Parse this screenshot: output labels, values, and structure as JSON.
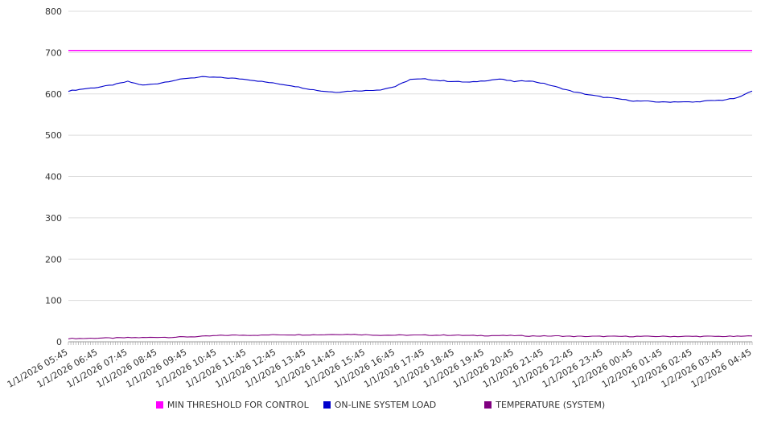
{
  "page": {
    "background": "#ffffff"
  },
  "chart_data": {
    "type": "line",
    "title": "",
    "xlabel": "",
    "ylabel": "",
    "grid": true,
    "legend_position": "bottom",
    "ylim": [
      0,
      800
    ],
    "y_ticks": [
      0,
      100,
      200,
      300,
      400,
      500,
      600,
      700,
      800
    ],
    "x_minutes_span": 1380,
    "x_minor_tick_minutes": 5,
    "sample_interval_minutes": 30,
    "x_tick_labels": [
      "1/1/2026 05:45",
      "1/1/2026 06:45",
      "1/1/2026 07:45",
      "1/1/2026 08:45",
      "1/1/2026 09:45",
      "1/1/2026 10:45",
      "1/1/2026 11:45",
      "1/1/2026 12:45",
      "1/1/2026 13:45",
      "1/1/2026 14:45",
      "1/1/2026 15:45",
      "1/1/2026 16:45",
      "1/1/2026 17:45",
      "1/1/2026 18:45",
      "1/1/2026 19:45",
      "1/1/2026 20:45",
      "1/1/2026 21:45",
      "1/1/2026 22:45",
      "1/1/2026 23:45",
      "1/2/2026 00:45",
      "1/2/2026 01:45",
      "1/2/2026 02:45",
      "1/2/2026 03:45",
      "1/2/2026 04:45"
    ],
    "series": [
      {
        "name": "MIN THRESHOLD FOR CONTROL",
        "color": "#ff00ff",
        "constant": 705
      },
      {
        "name": "ON-LINE SYSTEM LOAD",
        "color": "#0000cc",
        "values": [
          607,
          612,
          616,
          622,
          630,
          621,
          625,
          632,
          638,
          641,
          640,
          638,
          635,
          630,
          625,
          620,
          613,
          607,
          604,
          607,
          608,
          610,
          618,
          635,
          636,
          632,
          630,
          628,
          632,
          636,
          630,
          632,
          625,
          615,
          605,
          598,
          592,
          588,
          583,
          582,
          580,
          581,
          580,
          583,
          585,
          590,
          607
        ]
      },
      {
        "name": "TEMPERATURE (SYSTEM)",
        "color": "#800080",
        "values": [
          8,
          8,
          9,
          9,
          10,
          10,
          11,
          11,
          12,
          13,
          15,
          16,
          16,
          16,
          17,
          17,
          17,
          17,
          18,
          18,
          17,
          16,
          16,
          16,
          16,
          16,
          16,
          15,
          15,
          15,
          15,
          14,
          14,
          14,
          13,
          13,
          13,
          13,
          13,
          13,
          13,
          13,
          13,
          13,
          13,
          13,
          14
        ]
      }
    ]
  }
}
